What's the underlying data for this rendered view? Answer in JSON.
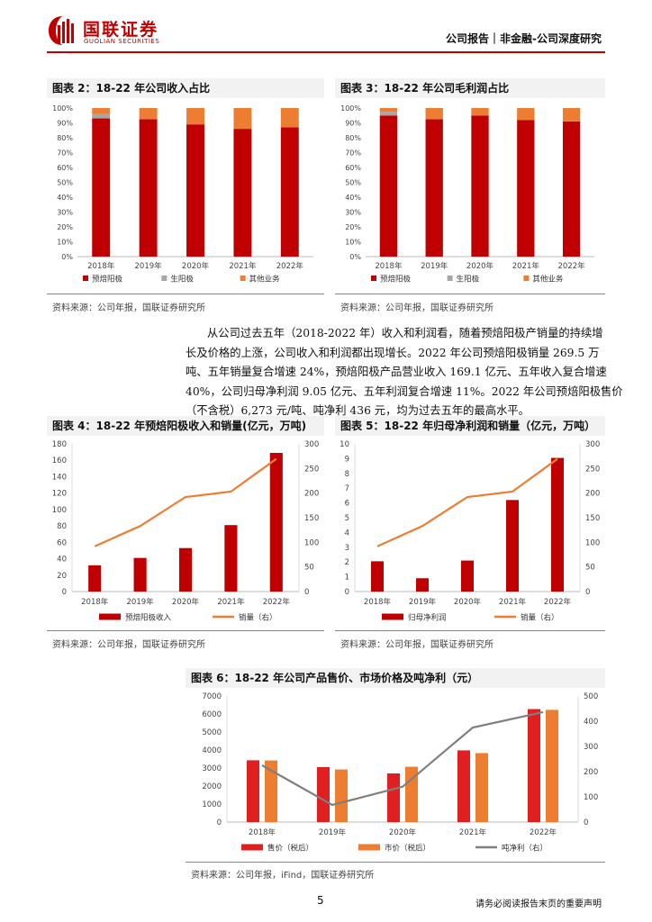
{
  "header": {
    "logo_cn": "国联证券",
    "logo_en": "GUOLIAN SECURITIES",
    "report_type": "公司报告｜非金融-公司深度研究"
  },
  "colors": {
    "brand_red": "#c00000",
    "gray": "#a6a6a6",
    "orange": "#ed7d31",
    "revenue_red": "#c00000",
    "price_red": "#e02020",
    "line_gray": "#7f7f7f"
  },
  "figures": {
    "fig2": {
      "title": "图表 2：18-22 年公司收入占比",
      "source": "资料来源：公司年报，国联证券研究所",
      "chart_data": {
        "type": "bar",
        "stacked": true,
        "categories": [
          "2018年",
          "2019年",
          "2020年",
          "2021年",
          "2022年"
        ],
        "yticks": [
          "0%",
          "10%",
          "20%",
          "30%",
          "40%",
          "50%",
          "60%",
          "70%",
          "80%",
          "90%",
          "100%"
        ],
        "ylim": [
          0,
          100
        ],
        "series": [
          {
            "name": "预焙阳极",
            "color": "#c00000",
            "values": [
              93,
              92.5,
              89,
              86,
              87
            ]
          },
          {
            "name": "生阳极",
            "color": "#a6a6a6",
            "values": [
              3,
              0,
              0,
              0,
              0
            ]
          },
          {
            "name": "其他业务",
            "color": "#ed7d31",
            "values": [
              4,
              7.5,
              11,
              14,
              13
            ]
          }
        ],
        "legend_position": "bottom"
      }
    },
    "fig3": {
      "title": "图表 3：18-22 年公司毛利润占比",
      "source": "资料来源：公司年报，国联证券研究所",
      "chart_data": {
        "type": "bar",
        "stacked": true,
        "categories": [
          "2018年",
          "2019年",
          "2020年",
          "2021年",
          "2022年"
        ],
        "yticks": [
          "0%",
          "10%",
          "20%",
          "30%",
          "40%",
          "50%",
          "60%",
          "70%",
          "80%",
          "90%",
          "100%"
        ],
        "ylim": [
          0,
          100
        ],
        "series": [
          {
            "name": "预焙阳极",
            "color": "#c00000",
            "values": [
              95,
              92.5,
              95,
              92,
              91
            ]
          },
          {
            "name": "生阳极",
            "color": "#a6a6a6",
            "values": [
              2.5,
              0,
              0,
              0,
              0
            ]
          },
          {
            "name": "其他业务",
            "color": "#ed7d31",
            "values": [
              2.5,
              7.5,
              5,
              8,
              9
            ]
          }
        ],
        "legend_position": "bottom"
      }
    },
    "fig4": {
      "title": "图表 4：18-22 年预焙阳极收入和销量(亿元，万吨)",
      "source": "资料来源：公司年报，国联证券研究所",
      "chart_data": {
        "type": "bar",
        "categories": [
          "2018年",
          "2019年",
          "2020年",
          "2021年",
          "2022年"
        ],
        "yticks_left": [
          "0",
          "20",
          "40",
          "60",
          "80",
          "100",
          "120",
          "140",
          "160",
          "180"
        ],
        "yticks_right": [
          "0",
          "50",
          "100",
          "150",
          "200",
          "250",
          "300"
        ],
        "ylim_left": [
          0,
          180
        ],
        "ylim_right": [
          0,
          300
        ],
        "series": [
          {
            "name": "预焙阳极收入",
            "kind": "bar",
            "axis": "left",
            "color": "#c00000",
            "values": [
              32,
              41,
              53,
              81,
              169
            ]
          },
          {
            "name": "销量（右）",
            "kind": "line",
            "axis": "right",
            "color": "#ed7d31",
            "values": [
              92,
              133,
              192,
              203,
              269.5
            ]
          }
        ],
        "legend_position": "bottom"
      }
    },
    "fig5": {
      "title": "图表 5：18-22 年归母净利润和销量（亿元，万吨）",
      "source": "资料来源：公司年报，国联证券研究所",
      "chart_data": {
        "type": "bar",
        "categories": [
          "2018年",
          "2019年",
          "2020年",
          "2021年",
          "2022年"
        ],
        "yticks_left": [
          "0",
          "1",
          "2",
          "3",
          "4",
          "5",
          "6",
          "7",
          "8",
          "9",
          "10"
        ],
        "yticks_right": [
          "0",
          "50",
          "100",
          "150",
          "200",
          "250",
          "300"
        ],
        "ylim_left": [
          0,
          10
        ],
        "ylim_right": [
          0,
          300
        ],
        "series": [
          {
            "name": "归母净利润",
            "kind": "bar",
            "axis": "left",
            "color": "#c00000",
            "values": [
              2.05,
              0.9,
              2.1,
              6.2,
              9.05
            ]
          },
          {
            "name": "销量（右）",
            "kind": "line",
            "axis": "right",
            "color": "#ed7d31",
            "values": [
              92,
              133,
              192,
              203,
              269.5
            ]
          }
        ],
        "legend_position": "bottom"
      }
    },
    "fig6": {
      "title": "图表 6：18-22 年公司产品售价、市场价格及吨净利（元）",
      "source": "资料来源：公司年报，iFind，国联证券研究所",
      "chart_data": {
        "type": "bar",
        "categories": [
          "2018年",
          "2019年",
          "2020年",
          "2021年",
          "2022年"
        ],
        "yticks_left": [
          "0",
          "1000",
          "2000",
          "3000",
          "4000",
          "5000",
          "6000",
          "7000"
        ],
        "yticks_right": [
          "0",
          "100",
          "200",
          "300",
          "400",
          "500"
        ],
        "ylim_left": [
          0,
          7000
        ],
        "ylim_right": [
          0,
          500
        ],
        "series": [
          {
            "name": "售价（税后）",
            "kind": "bar",
            "axis": "left",
            "color": "#e02020",
            "values": [
              3430,
              3050,
              2700,
              3980,
              6273
            ]
          },
          {
            "name": "市价（税后）",
            "kind": "bar",
            "axis": "left",
            "color": "#ed7d31",
            "values": [
              3420,
              2920,
              3070,
              3830,
              6230
            ]
          },
          {
            "name": "吨净利（右）",
            "kind": "line",
            "axis": "right",
            "color": "#7f7f7f",
            "values": [
              225,
              68,
              140,
              375,
              436
            ]
          }
        ],
        "legend_position": "bottom"
      }
    }
  },
  "paragraph": {
    "lines": [
      "从公司过去五年（2018-2022 年）收入和利润看，随着预焙阳极产销量的持续增",
      "长及价格的上涨，公司收入和利润都出现增长。2022 年公司预焙阳极销量 269.5 万",
      "吨、五年销量复合增速 24%，预焙阳极产品营业收入 169.1 亿元、五年收入复合增速",
      "40%，公司归母净利润 9.05 亿元、五年利润复合增速 11%。2022 年公司预焙阳极售价",
      "（不含税）6,273 元/吨、吨净利 436 元，均为过去五年的最高水平。"
    ]
  },
  "footer": {
    "page_number": "5",
    "disclaimer": "请务必阅读报告末页的重要声明"
  }
}
